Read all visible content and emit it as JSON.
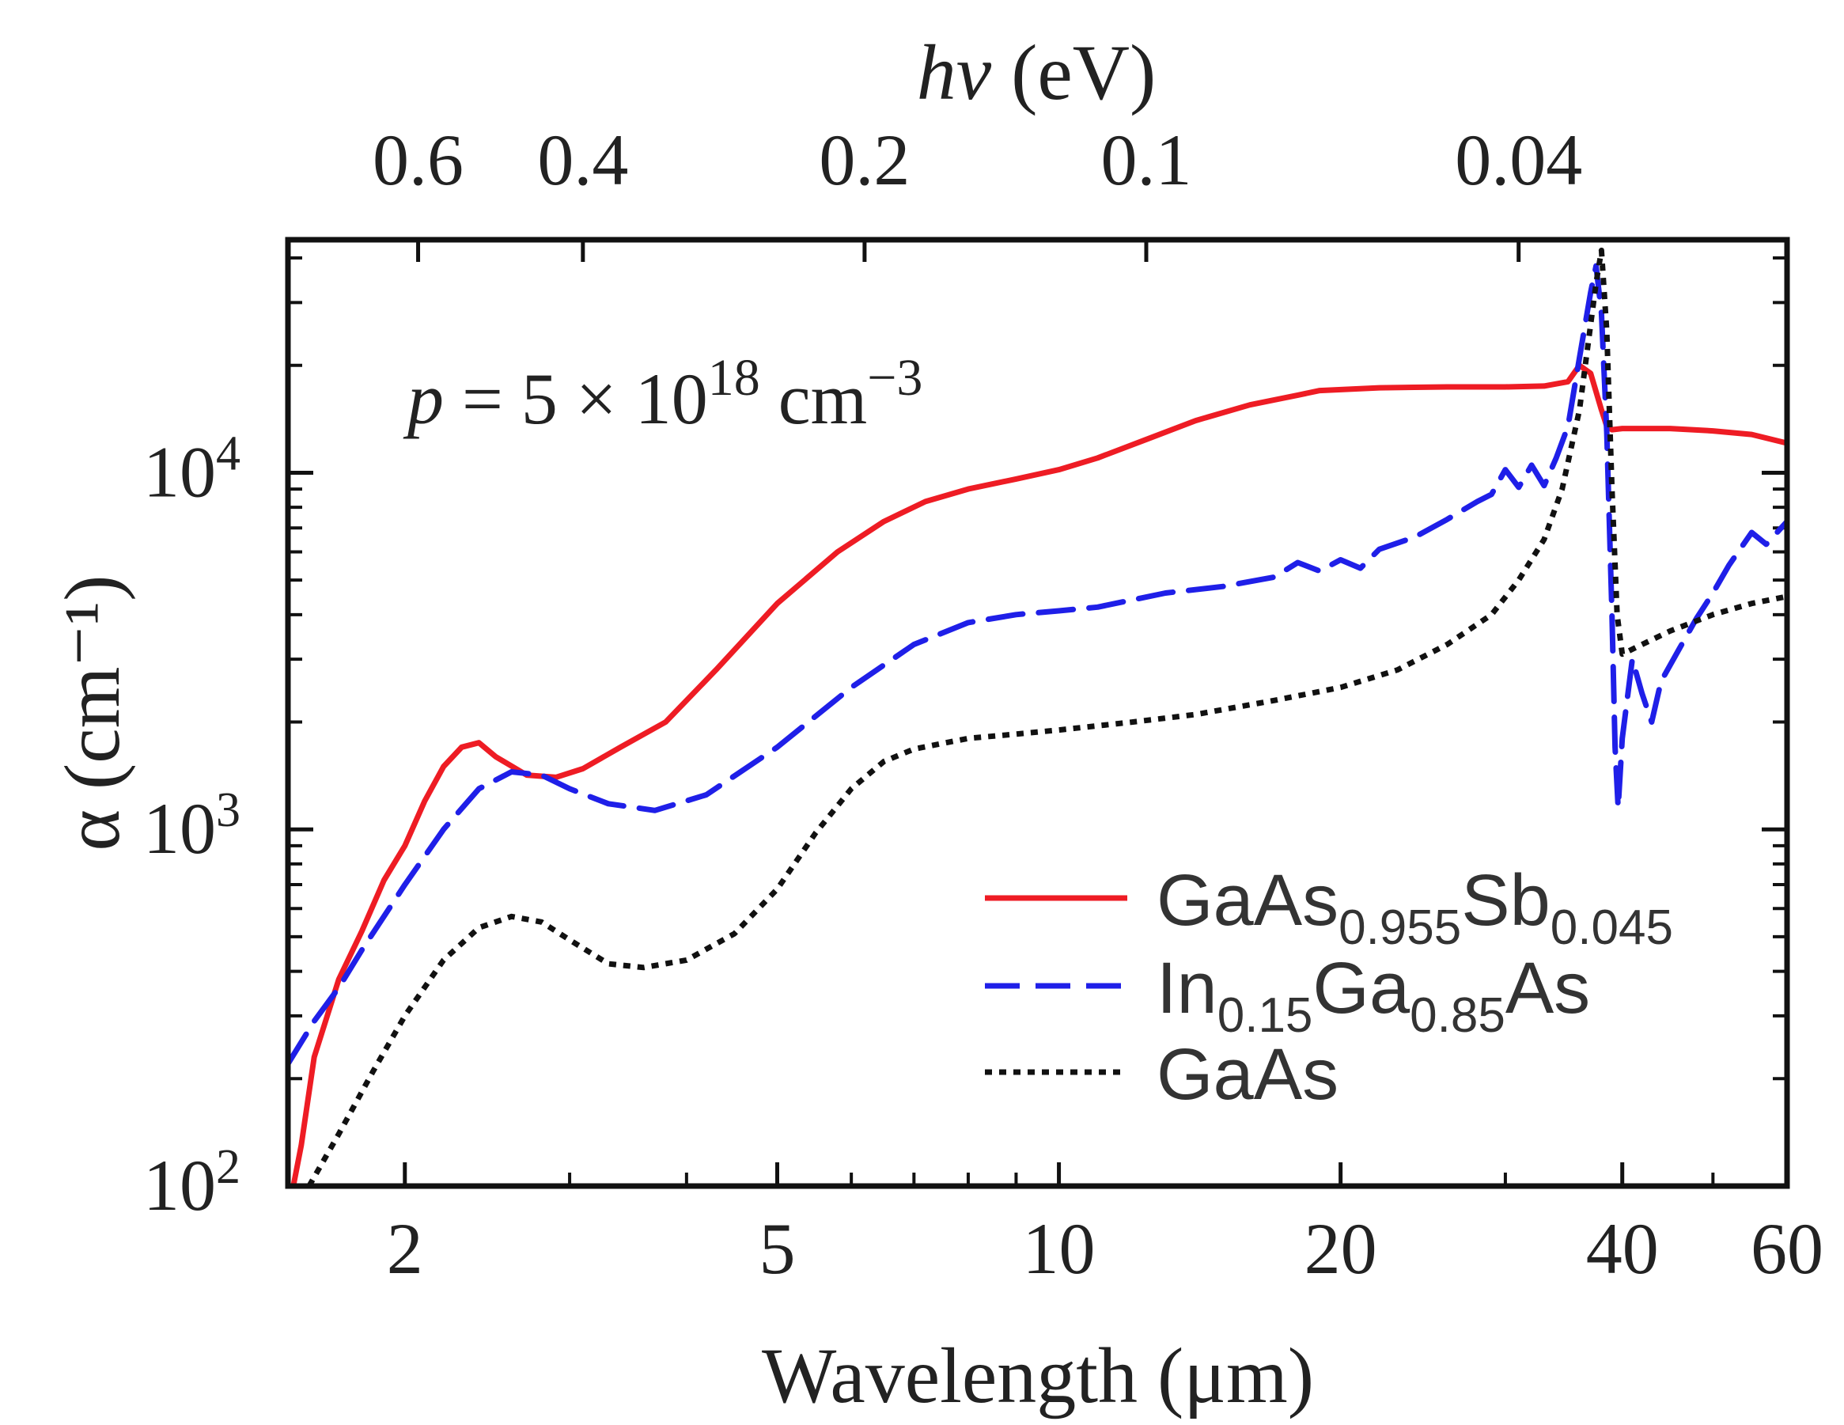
{
  "chart_data": {
    "type": "line",
    "title": "",
    "xlabel": "Wavelength (μm)",
    "ylabel": "α (cm⁻¹)",
    "x_scale": "log",
    "y_scale": "log",
    "xlim": [
      1.5,
      60
    ],
    "ylim": [
      100,
      45000
    ],
    "grid": false,
    "legend_position": "bottom-right",
    "x_ticks": [
      {
        "value": 2,
        "label": "2"
      },
      {
        "value": 5,
        "label": "5"
      },
      {
        "value": 10,
        "label": "10"
      },
      {
        "value": 20,
        "label": "20"
      },
      {
        "value": 40,
        "label": "40"
      },
      {
        "value": 60,
        "label": "60"
      }
    ],
    "x_minor_ticks": [
      3,
      4,
      6,
      7,
      8,
      9,
      30,
      50
    ],
    "y_ticks": [
      {
        "value": 100,
        "base": "10",
        "exp": "2"
      },
      {
        "value": 1000,
        "base": "10",
        "exp": "3"
      },
      {
        "value": 10000,
        "base": "10",
        "exp": "4"
      }
    ],
    "y_minor_ticks": [
      200,
      300,
      400,
      500,
      600,
      700,
      800,
      900,
      2000,
      3000,
      4000,
      5000,
      6000,
      7000,
      8000,
      9000,
      20000,
      30000,
      40000
    ],
    "top_axis": {
      "label_italic": "hν",
      "label_unit": " (eV)",
      "ticks": [
        {
          "energy": 0.6,
          "label": "0.6"
        },
        {
          "energy": 0.4,
          "label": "0.4"
        },
        {
          "energy": 0.2,
          "label": "0.2"
        },
        {
          "energy": 0.1,
          "label": "0.1"
        },
        {
          "energy": 0.04,
          "label": "0.04"
        }
      ]
    },
    "annotation": {
      "var": "p",
      "text": " = 5 × 10",
      "exp": "18",
      "unit": " cm",
      "unit_exp": "−3"
    },
    "series": [
      {
        "name": "GaAs0.955Sb0.045",
        "legend_parts": [
          {
            "t": "GaAs",
            "sub": false
          },
          {
            "t": "0.955",
            "sub": true
          },
          {
            "t": "Sb",
            "sub": false
          },
          {
            "t": "0.045",
            "sub": true
          }
        ],
        "color": "#ee1c24",
        "dash": "solid",
        "x": [
          1.52,
          1.55,
          1.6,
          1.7,
          1.8,
          1.9,
          2.0,
          2.1,
          2.2,
          2.3,
          2.4,
          2.5,
          2.7,
          2.9,
          3.1,
          3.4,
          3.8,
          4.3,
          5.0,
          5.8,
          6.5,
          7.2,
          8.0,
          9.0,
          10.0,
          11.0,
          12.5,
          14.0,
          16.0,
          18.0,
          19.0,
          22.0,
          26.0,
          30.0,
          33.0,
          35.0,
          36.0,
          37.0,
          38.0,
          38.5,
          39.0,
          40.0,
          45.0,
          50.0,
          55.0,
          60.0
        ],
        "y": [
          100,
          130,
          230,
          380,
          520,
          720,
          900,
          1200,
          1500,
          1700,
          1750,
          1600,
          1420,
          1400,
          1480,
          1700,
          2000,
          2800,
          4300,
          6000,
          7300,
          8300,
          9000,
          9600,
          10200,
          11000,
          12500,
          14000,
          15500,
          16500,
          17000,
          17300,
          17400,
          17400,
          17500,
          18000,
          20000,
          19000,
          15000,
          13500,
          13200,
          13300,
          13300,
          13100,
          12800,
          12100
        ]
      },
      {
        "name": "In0.15Ga0.85As",
        "legend_parts": [
          {
            "t": "In",
            "sub": false
          },
          {
            "t": "0.15",
            "sub": true
          },
          {
            "t": "Ga",
            "sub": false
          },
          {
            "t": "0.85",
            "sub": true
          },
          {
            "t": "As",
            "sub": false
          }
        ],
        "color": "#1f1fe8",
        "dash": "dashed",
        "x": [
          1.5,
          1.6,
          1.7,
          1.8,
          2.0,
          2.2,
          2.4,
          2.6,
          2.8,
          3.0,
          3.3,
          3.7,
          4.2,
          5.0,
          6.0,
          7.0,
          8.0,
          9.0,
          10.0,
          11.0,
          13.0,
          15.0,
          17.0,
          18.0,
          19.0,
          20.0,
          21.0,
          22.0,
          24.0,
          26.0,
          28.0,
          29.0,
          30.0,
          31.0,
          32.0,
          33.0,
          34.0,
          35.0,
          36.0,
          37.0,
          37.5,
          38.0,
          38.5,
          39.0,
          39.3,
          39.6,
          40.0,
          41.0,
          42.0,
          43.0,
          44.0,
          46.0,
          48.0,
          50.0,
          52.0,
          55.0,
          57.0,
          60.0
        ],
        "y": [
          220,
          290,
          360,
          460,
          700,
          1000,
          1300,
          1450,
          1420,
          1300,
          1180,
          1130,
          1250,
          1700,
          2500,
          3300,
          3800,
          4000,
          4100,
          4200,
          4600,
          4800,
          5100,
          5600,
          5300,
          5700,
          5400,
          6100,
          6600,
          7400,
          8300,
          8700,
          10200,
          9100,
          10500,
          9200,
          11000,
          13500,
          21000,
          32000,
          38000,
          28000,
          13000,
          4000,
          1700,
          1150,
          1800,
          3000,
          2400,
          2000,
          2600,
          3200,
          3900,
          4600,
          5500,
          6800,
          6300,
          7300
        ]
      },
      {
        "name": "GaAs",
        "legend_parts": [
          {
            "t": "GaAs",
            "sub": false
          }
        ],
        "color": "#111111",
        "dash": "dotted",
        "x": [
          1.58,
          1.7,
          1.85,
          2.0,
          2.2,
          2.4,
          2.6,
          2.8,
          3.0,
          3.3,
          3.6,
          4.0,
          4.5,
          5.0,
          5.5,
          6.0,
          6.5,
          7.0,
          8.0,
          9.0,
          10.0,
          12.0,
          14.0,
          17.0,
          20.0,
          23.0,
          26.0,
          29.0,
          31.0,
          33.0,
          34.5,
          36.0,
          37.0,
          37.5,
          38.0,
          38.5,
          39.0,
          39.5,
          40.0,
          42.0,
          45.0,
          50.0,
          55.0,
          60.0
        ],
        "y": [
          100,
          140,
          210,
          300,
          430,
          530,
          570,
          550,
          490,
          420,
          410,
          430,
          510,
          680,
          980,
          1300,
          1550,
          1680,
          1800,
          1850,
          1900,
          2000,
          2100,
          2300,
          2500,
          2800,
          3300,
          4000,
          5000,
          6500,
          9000,
          15000,
          26000,
          34000,
          42000,
          25000,
          9000,
          4000,
          3100,
          3300,
          3600,
          4000,
          4300,
          4500
        ]
      }
    ]
  }
}
